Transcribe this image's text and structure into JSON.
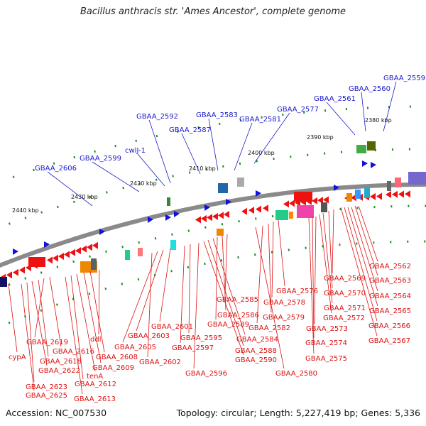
{
  "title": "Bacillus anthracis str. 'Ames Ancestor', complete genome",
  "footer": {
    "accession": "Accession: NC_007530",
    "stats": "Topology: circular; Length: 5,227,419 bp; Genes: 5,336"
  },
  "colors": {
    "forward_label": "#1a1acc",
    "reverse_label": "#dd1111",
    "forward_arrow": "#1010e0",
    "reverse_arrow": "#ee1111",
    "backbone": "#8a8a8a",
    "tick": "#1e8a1e"
  },
  "kbp_labels": [
    "2380 kbp",
    "2390 kbp",
    "2400 kbp",
    "2410 kbp",
    "2420 kbp",
    "2430 kbp",
    "2440 kbp"
  ],
  "forward_genes": [
    "GBAA_2559",
    "GBAA_2560",
    "GBAA_2561",
    "GBAA_2577",
    "GBAA_2581",
    "GBAA_2583",
    "GBAA_2587",
    "GBAA_2592",
    "cwlJ-1",
    "GBAA_2599",
    "GBAA_2606"
  ],
  "reverse_genes": [
    "GBAA_2562",
    "GBAA_2563",
    "GBAA_2564",
    "GBAA_2565",
    "GBAA_2566",
    "GBAA_2567",
    "GBAA_2569",
    "GBAA_2570",
    "GBAA_2571",
    "GBAA_2572",
    "GBAA_2573",
    "GBAA_2574",
    "GBAA_2575",
    "GBAA_2576",
    "GBAA_2578",
    "GBAA_2579",
    "GBAA_2582",
    "GBAA_2580",
    "GBAA_2585",
    "GBAA_2586",
    "GBAA_2589",
    "GBAA_2584",
    "GBAA_2588",
    "GBAA_2590",
    "GBAA_2596",
    "GBAA_2595",
    "GBAA_2597",
    "GBAA_2601",
    "GBAA_2603",
    "GBAA_2605",
    "GBAA_2602",
    "ddl",
    "GBAA_2608",
    "GBAA_2609",
    "tenA",
    "GBAA_2612",
    "GBAA_2613",
    "GBAA_2616",
    "GBAA_2619",
    "GBAA_2618",
    "GBAA_2622",
    "GBAA_2623",
    "GBAA_2625",
    "cypA"
  ]
}
